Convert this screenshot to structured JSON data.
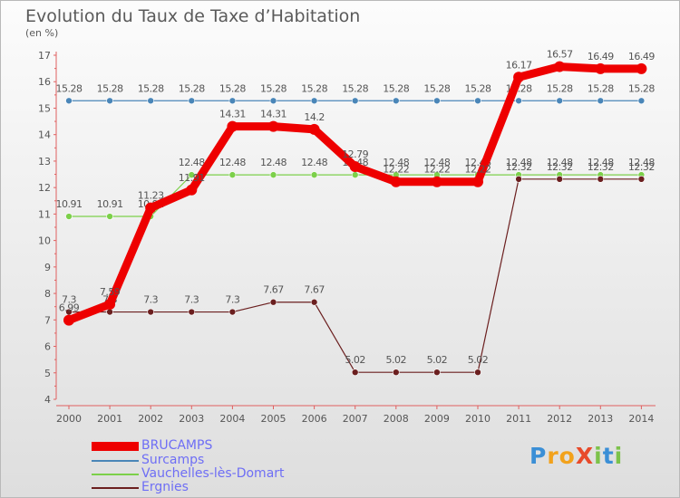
{
  "title": "Evolution du Taux de Taxe d’Habitation",
  "unit": "(en %)",
  "logo": "ProXiti",
  "chart_data": {
    "type": "line",
    "x": [
      "2000",
      "2001",
      "2002",
      "2003",
      "2004",
      "2005",
      "2006",
      "2007",
      "2008",
      "2009",
      "2010",
      "2011",
      "2012",
      "2013",
      "2014"
    ],
    "yticks": [
      "4",
      "5",
      "6",
      "7",
      "8",
      "9",
      "10",
      "11",
      "12",
      "13",
      "14",
      "15",
      "16",
      "17"
    ],
    "ylim": [
      4,
      17
    ],
    "grid": false,
    "legend": "bottom-left",
    "series": [
      {
        "name": "Surcamps",
        "color": "#4a86b8",
        "values": [
          15.28,
          15.28,
          15.28,
          15.28,
          15.28,
          15.28,
          15.28,
          15.28,
          15.28,
          15.28,
          15.28,
          15.28,
          15.28,
          15.28,
          15.28
        ],
        "labels": [
          "15.28",
          "15.28",
          "15.28",
          "15.28",
          "15.28",
          "15.28",
          "15.28",
          "15.28",
          "15.28",
          "15.28",
          "15.28",
          "15.28",
          "15.28",
          "15.28",
          "15.28"
        ]
      },
      {
        "name": "Vauchelles-lès-Domart",
        "color": "#7cd04a",
        "values": [
          10.91,
          10.91,
          10.91,
          12.48,
          12.48,
          12.48,
          12.48,
          12.48,
          12.48,
          12.48,
          12.48,
          12.48,
          12.48,
          12.48,
          12.48
        ],
        "labels": [
          "10.91",
          "10.91",
          "10.91",
          "12.48",
          "12.48",
          "12.48",
          "12.48",
          "12.48",
          "12.48",
          "12.48",
          "12.48",
          "12.48",
          "12.48",
          "12.48",
          "12.48"
        ]
      },
      {
        "name": "Ergnies",
        "color": "#6b1f1f",
        "values": [
          7.3,
          7.3,
          7.3,
          7.3,
          7.3,
          7.67,
          7.67,
          5.02,
          5.02,
          5.02,
          5.02,
          12.32,
          12.32,
          12.32,
          12.32
        ],
        "labels": [
          "7.3",
          "7.3",
          "7.3",
          "7.3",
          "7.3",
          "7.67",
          "7.67",
          "5.02",
          "5.02",
          "5.02",
          "5.02",
          "12.32",
          "12.32",
          "12.32",
          "12.32"
        ]
      },
      {
        "name": "BRUCAMPS",
        "color": "#ee0000",
        "values": [
          6.99,
          7.59,
          11.23,
          11.91,
          14.31,
          14.31,
          14.2,
          12.79,
          12.22,
          12.22,
          12.22,
          16.17,
          16.57,
          16.49,
          16.49
        ],
        "labels": [
          "6.99",
          "7.59",
          "11.23",
          "11.91",
          "14.31",
          "14.31",
          "14.2",
          "12.79",
          "12.22",
          "12.22",
          "12.22",
          "16.17",
          "16.57",
          "16.49",
          "16.49"
        ]
      }
    ]
  },
  "legend_items": [
    {
      "label": "BRUCAMPS",
      "color": "#ee0000"
    },
    {
      "label": "Surcamps",
      "color": "#4a86b8"
    },
    {
      "label": "Vauchelles-lès-Domart",
      "color": "#7cd04a"
    },
    {
      "label": "Ergnies",
      "color": "#6b1f1f"
    }
  ]
}
